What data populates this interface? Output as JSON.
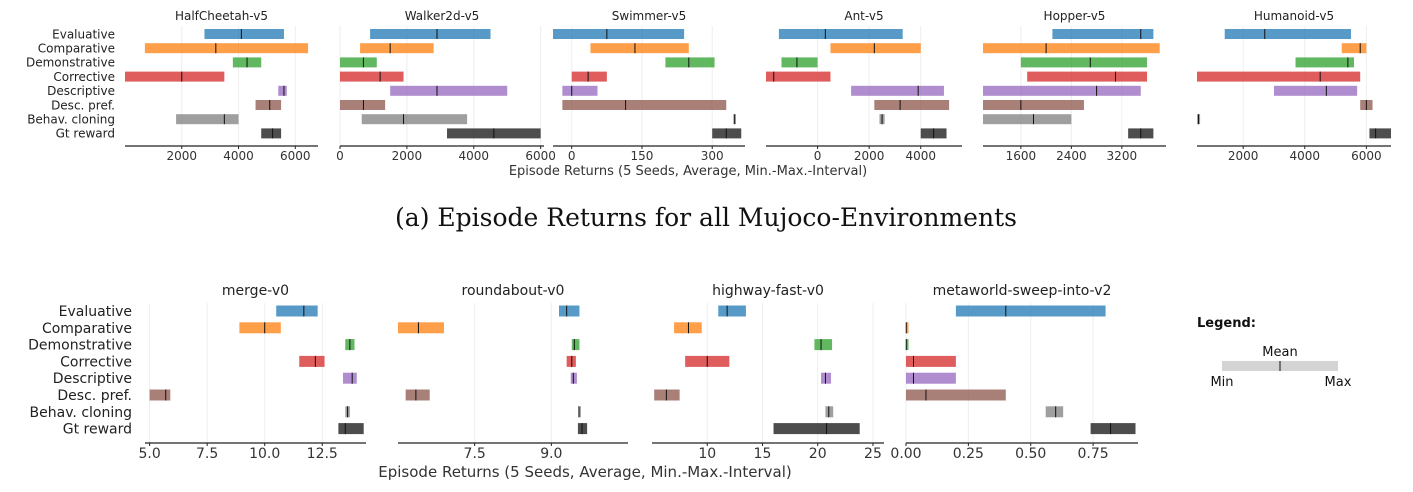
{
  "methods": [
    "Evaluative",
    "Comparative",
    "Demonstrative",
    "Corrective",
    "Descriptive",
    "Desc. pref.",
    "Behav. cloning",
    "Gt reward"
  ],
  "colors": [
    "#1f77b4",
    "#ff7f0e",
    "#2ca02c",
    "#d62728",
    "#9467bd",
    "#8c564b",
    "#7f7f7f",
    "#111111"
  ],
  "figure_a": {
    "xlabel": "Episode Returns (5 Seeds, Average, Min.-Max.-Interval)",
    "caption": "(a) Episode Returns for all Mujoco-Environments"
  },
  "figure_b": {
    "xlabel": "Episode Returns (5 Seeds, Average, Min.-Max.-Interval)"
  },
  "legend": {
    "title": "Legend:",
    "mean_label": "Mean",
    "min_label": "Min",
    "max_label": "Max"
  },
  "chart_data": [
    {
      "type": "bar",
      "title": "HalfCheetah-v5",
      "xlim": [
        0,
        6800
      ],
      "ticks": [
        2000,
        4000,
        6000
      ],
      "tick_labels": [
        "2000",
        "4000",
        "6000"
      ],
      "series": [
        [
          2800,
          5600,
          4100
        ],
        [
          700,
          6450,
          3200
        ],
        [
          3800,
          4800,
          4300
        ],
        [
          0,
          3500,
          2000
        ],
        [
          5400,
          5700,
          5600
        ],
        [
          4600,
          5500,
          5100
        ],
        [
          1800,
          4000,
          3500
        ],
        [
          4800,
          5500,
          5200
        ]
      ]
    },
    {
      "title": "Walker2d-v5",
      "xlim": [
        0,
        6100
      ],
      "ticks": [
        0,
        2000,
        4000,
        6000
      ],
      "tick_labels": [
        "0",
        "2000",
        "4000",
        "6000"
      ],
      "series": [
        [
          900,
          4500,
          2900
        ],
        [
          600,
          2800,
          1500
        ],
        [
          0,
          1100,
          700
        ],
        [
          0,
          1900,
          1200
        ],
        [
          1500,
          5000,
          2900
        ],
        [
          0,
          1350,
          700
        ],
        [
          650,
          3800,
          1900
        ],
        [
          3200,
          6000,
          4600
        ]
      ]
    },
    {
      "title": "Swimmer-v5",
      "xlim": [
        -40,
        370
      ],
      "ticks": [
        0,
        150,
        300
      ],
      "tick_labels": [
        "0",
        "150",
        "300"
      ],
      "series": [
        [
          -40,
          240,
          75
        ],
        [
          40,
          250,
          135
        ],
        [
          200,
          305,
          250
        ],
        [
          0,
          75,
          35
        ],
        [
          -20,
          55,
          0
        ],
        [
          -20,
          330,
          115
        ],
        [
          345,
          350,
          348
        ],
        [
          300,
          362,
          330
        ]
      ]
    },
    {
      "title": "Ant-v5",
      "xlim": [
        -2000,
        5600
      ],
      "ticks": [
        0,
        2000,
        4000
      ],
      "tick_labels": [
        "0",
        "2000",
        "4000"
      ],
      "series": [
        [
          -1500,
          3300,
          300
        ],
        [
          500,
          4000,
          2200
        ],
        [
          -1400,
          0,
          -800
        ],
        [
          -2700,
          500,
          -1700
        ],
        [
          1300,
          4900,
          3900
        ],
        [
          2200,
          5100,
          3200
        ],
        [
          2400,
          2600,
          2500
        ],
        [
          4000,
          5000,
          4500
        ]
      ]
    },
    {
      "title": "Hopper-v5",
      "xlim": [
        1000,
        3900
      ],
      "ticks": [
        1600,
        2400,
        3200
      ],
      "tick_labels": [
        "1600",
        "2400",
        "3200"
      ],
      "series": [
        [
          2100,
          3700,
          3500
        ],
        [
          1000,
          3800,
          2000
        ],
        [
          1600,
          3600,
          2700
        ],
        [
          1700,
          3600,
          3100
        ],
        [
          1000,
          3500,
          2800
        ],
        [
          1000,
          2600,
          1600
        ],
        [
          1000,
          2400,
          1800
        ],
        [
          3300,
          3700,
          3500
        ]
      ]
    },
    {
      "title": "Humanoid-v5",
      "xlim": [
        500,
        6800
      ],
      "ticks": [
        2000,
        4000,
        6000
      ],
      "tick_labels": [
        "2000",
        "4000",
        "6000"
      ],
      "series": [
        [
          1400,
          5500,
          2700
        ],
        [
          5200,
          6000,
          5800
        ],
        [
          3700,
          5600,
          5400
        ],
        [
          400,
          5800,
          4500
        ],
        [
          3000,
          5700,
          4700
        ],
        [
          5800,
          6200,
          6000
        ],
        [
          500,
          600,
          550
        ],
        [
          6100,
          7100,
          6300
        ]
      ]
    },
    {
      "title": "merge-v0",
      "xlim": [
        4.8,
        14.4
      ],
      "ticks": [
        5.0,
        7.5,
        10.0,
        12.5
      ],
      "tick_labels": [
        "5.0",
        "7.5",
        "10.0",
        "12.5"
      ],
      "series": [
        [
          10.5,
          12.3,
          11.7
        ],
        [
          8.9,
          10.7,
          10.0
        ],
        [
          13.5,
          13.9,
          13.7
        ],
        [
          11.5,
          12.6,
          12.2
        ],
        [
          13.4,
          14.0,
          13.8
        ],
        [
          5.0,
          5.9,
          5.7
        ],
        [
          13.5,
          13.7,
          13.6
        ],
        [
          13.2,
          14.3,
          13.5
        ]
      ]
    },
    {
      "title": "roundabout-v0",
      "xlim": [
        6.0,
        10.5
      ],
      "ticks": [
        7.5,
        9.0
      ],
      "tick_labels": [
        "7.5",
        "9.0"
      ],
      "series": [
        [
          9.15,
          9.55,
          9.3
        ],
        [
          6.0,
          6.9,
          6.4
        ],
        [
          9.4,
          9.55,
          9.45
        ],
        [
          9.3,
          9.48,
          9.4
        ],
        [
          9.38,
          9.5,
          9.43
        ],
        [
          6.15,
          6.62,
          6.35
        ],
        [
          9.53,
          9.56,
          9.54
        ],
        [
          9.52,
          9.7,
          9.6
        ]
      ]
    },
    {
      "title": "highway-fast-v0",
      "xlim": [
        5.0,
        26.0
      ],
      "ticks": [
        10,
        15,
        20,
        25
      ],
      "tick_labels": [
        "10",
        "15",
        "20",
        "25"
      ],
      "series": [
        [
          11.0,
          13.5,
          11.8
        ],
        [
          7.0,
          9.5,
          8.3
        ],
        [
          19.7,
          21.3,
          20.3
        ],
        [
          8.0,
          12.0,
          10.0
        ],
        [
          20.3,
          21.2,
          20.7
        ],
        [
          5.2,
          7.5,
          6.3
        ],
        [
          20.7,
          21.4,
          21.0
        ],
        [
          16.0,
          23.8,
          20.8
        ]
      ]
    },
    {
      "title": "metaworld-sweep-into-v2",
      "xlim": [
        0.0,
        0.93
      ],
      "ticks": [
        0.0,
        0.25,
        0.5,
        0.75
      ],
      "tick_labels": [
        "0.00",
        "0.25",
        "0.50",
        "0.75"
      ],
      "series": [
        [
          0.2,
          0.8,
          0.4
        ],
        [
          0.0,
          0.003,
          0.001
        ],
        [
          0.0,
          0.003,
          0.001
        ],
        [
          0.0,
          0.2,
          0.03
        ],
        [
          0.0,
          0.2,
          0.03
        ],
        [
          0.0,
          0.4,
          0.08
        ],
        [
          0.56,
          0.63,
          0.6
        ],
        [
          0.74,
          0.92,
          0.82
        ]
      ]
    }
  ]
}
